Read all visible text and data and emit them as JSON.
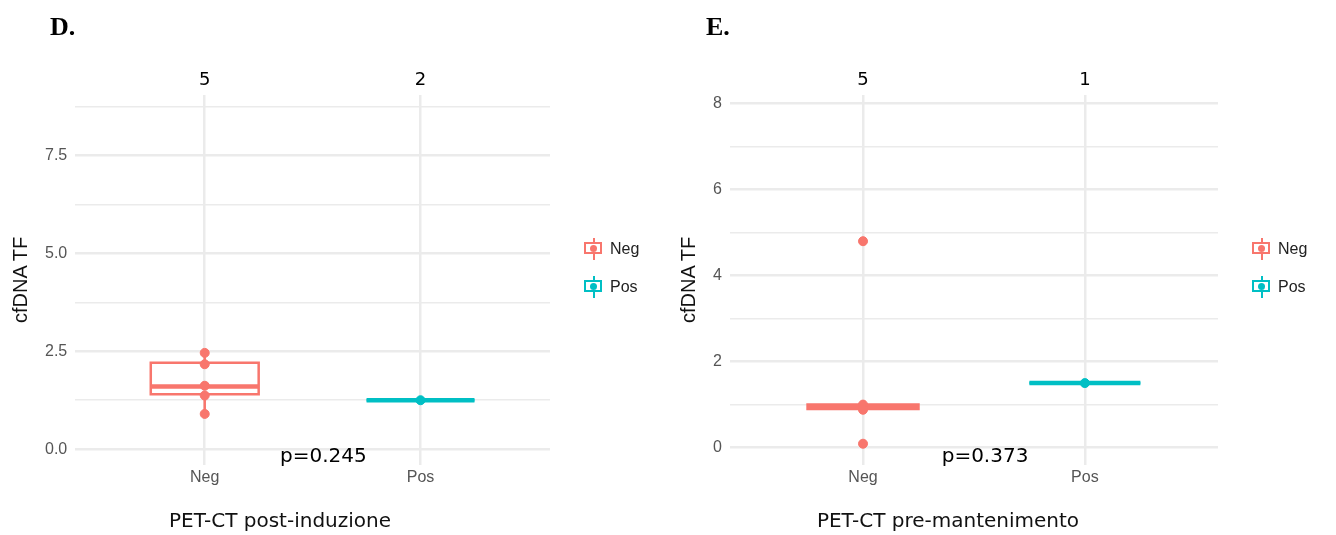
{
  "chart_data": [
    {
      "type": "box",
      "title": "D.",
      "xlabel": "PET-CT post-induzione",
      "ylabel": "cfDNA TF",
      "categories": [
        "Neg",
        "Pos"
      ],
      "series": [
        {
          "name": "Neg",
          "color": "#f8766d",
          "boxes": [
            {
              "low": 0.9,
              "q1": 1.4,
              "median": 1.6,
              "q3": 2.21,
              "high": 2.46
            },
            null
          ]
        },
        {
          "name": "Pos",
          "color": "#00bfc4",
          "boxes": [
            null,
            {
              "low": 1.25,
              "q1": 1.25,
              "median": 1.25,
              "q3": 1.25,
              "high": 1.25
            }
          ]
        },
        {
          "type": "scatter",
          "color": "#f8766d",
          "x": [
            "Neg",
            "Neg",
            "Neg",
            "Neg",
            "Neg"
          ],
          "values": [
            2.46,
            2.17,
            1.62,
            1.37,
            0.9
          ]
        },
        {
          "type": "scatter",
          "color": "#00bfc4",
          "x": [
            "Pos",
            "Pos"
          ],
          "values": [
            1.25,
            null
          ]
        }
      ],
      "ylim": [
        -0.4,
        9.05
      ],
      "yticks": [
        {
          "value": 0,
          "label": "0.0"
        },
        {
          "value": 1.25,
          "label": null
        },
        {
          "value": 2.5,
          "label": "2.5"
        },
        {
          "value": 3.75,
          "label": null
        },
        {
          "value": 5,
          "label": "5.0"
        },
        {
          "value": 6.25,
          "label": null
        },
        {
          "value": 7.5,
          "label": "7.5"
        },
        {
          "value": 8.75,
          "label": null
        }
      ],
      "grid": true,
      "legend": "right",
      "marker": "circle",
      "annotations": [
        "5",
        "2",
        "p=0.245"
      ]
    },
    {
      "type": "box",
      "title": "E.",
      "xlabel": "PET-CT pre-mantenimento",
      "ylabel": "cfDNA TF",
      "categories": [
        "Neg",
        "Pos"
      ],
      "series": [
        {
          "name": "Neg",
          "color": "#f8766d",
          "boxes": [
            {
              "low": 0.9,
              "q1": 0.9,
              "median": 0.95,
              "q3": 1.0,
              "high": 1.0
            },
            null
          ]
        },
        {
          "name": "Pos",
          "color": "#00bfc4",
          "boxes": [
            null,
            {
              "low": 1.5,
              "q1": 1.5,
              "median": 1.5,
              "q3": 1.5,
              "high": 1.5
            }
          ]
        },
        {
          "type": "scatter",
          "color": "#f8766d",
          "x": [
            "Neg",
            "Neg",
            "Neg",
            "Neg"
          ],
          "values": [
            4.8,
            1.0,
            0.88,
            0.09
          ]
        },
        {
          "type": "scatter",
          "color": "#00bfc4",
          "x": [
            "Pos"
          ],
          "values": [
            1.5
          ]
        }
      ],
      "ylim": [
        -0.4,
        8.2
      ],
      "yticks": [
        0,
        {
          "value": 1,
          "label": null
        },
        2,
        {
          "value": 3,
          "label": null
        },
        4,
        {
          "value": 5,
          "label": null
        },
        6,
        {
          "value": 7,
          "label": null
        },
        8
      ],
      "grid": true,
      "legend": "right",
      "marker": "circle",
      "annotations": [
        "5",
        "1",
        "p=0.373"
      ]
    }
  ]
}
